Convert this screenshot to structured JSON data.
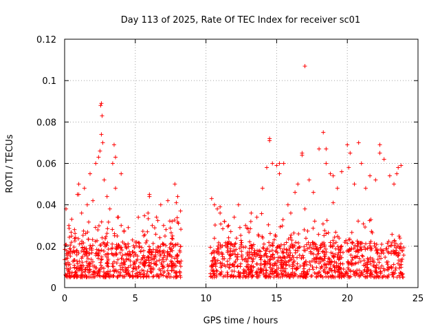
{
  "chart_data": {
    "type": "scatter",
    "title": "Day 113 of 2025, Rate Of TEC Index for receiver sc01",
    "xlabel": "GPS time / hours",
    "ylabel": "ROTI / TECUs",
    "xlim": [
      0,
      25
    ],
    "ylim": [
      0,
      0.12
    ],
    "x_ticks": [
      0,
      5,
      10,
      15,
      20,
      25
    ],
    "x_tick_labels": [
      "0",
      "5",
      "10",
      "15",
      "20",
      "25"
    ],
    "y_ticks": [
      0,
      0.02,
      0.04,
      0.06,
      0.08,
      0.1,
      0.12
    ],
    "y_tick_labels": [
      "0",
      "0.02",
      "0.04",
      "0.06",
      "0.08",
      "0.1",
      "0.12"
    ],
    "grid": true,
    "marker": "+",
    "marker_color": "#ff0000",
    "gap_hours": [
      8.3,
      10.3
    ],
    "series": [
      {
        "x": [
          0.1,
          0.3,
          0.5,
          0.7,
          0.9,
          1.0,
          1.2,
          1.4,
          1.6,
          1.8,
          2.0,
          2.2,
          2.4,
          2.5,
          2.6,
          2.7,
          2.8,
          3.0,
          3.2,
          3.4,
          3.5,
          3.6,
          3.8,
          4.0,
          4.2,
          4.5,
          4.8,
          5.0,
          5.3,
          5.6,
          5.9,
          6.0,
          6.2,
          6.5,
          6.8,
          7.0,
          7.3,
          7.6,
          7.8,
          8.0,
          8.2,
          10.4,
          10.6,
          10.8,
          11.0,
          11.3,
          11.6,
          12.0,
          12.4,
          12.8,
          13.2,
          13.6,
          14.0,
          14.3,
          14.5,
          14.7,
          15.0,
          15.2,
          15.5,
          15.8,
          16.0,
          16.3,
          16.5,
          16.8,
          17.0,
          17.3,
          17.6,
          18.0,
          18.3,
          18.5,
          18.8,
          19.0,
          19.3,
          19.6,
          20.0,
          20.2,
          20.5,
          20.8,
          21.0,
          21.3,
          21.6,
          22.0,
          22.3,
          22.6,
          23.0,
          23.3,
          23.6,
          23.8,
          2.55,
          2.6,
          2.65,
          3.6,
          14.5,
          15.2,
          16.8,
          17.0,
          18.5,
          20.1,
          22.3,
          23.5,
          1.0,
          4.0,
          6.0,
          7.9,
          11.0,
          12.3,
          19.0
        ],
        "y": [
          0.038,
          0.03,
          0.033,
          0.028,
          0.045,
          0.05,
          0.036,
          0.048,
          0.04,
          0.055,
          0.042,
          0.06,
          0.063,
          0.066,
          0.074,
          0.07,
          0.052,
          0.044,
          0.038,
          0.06,
          0.069,
          0.048,
          0.034,
          0.03,
          0.027,
          0.029,
          0.023,
          0.022,
          0.02,
          0.025,
          0.036,
          0.044,
          0.03,
          0.034,
          0.04,
          0.03,
          0.042,
          0.032,
          0.05,
          0.044,
          0.037,
          0.043,
          0.04,
          0.038,
          0.036,
          0.032,
          0.03,
          0.034,
          0.029,
          0.03,
          0.036,
          0.034,
          0.048,
          0.058,
          0.071,
          0.06,
          0.059,
          0.055,
          0.06,
          0.04,
          0.036,
          0.046,
          0.05,
          0.064,
          0.038,
          0.052,
          0.046,
          0.067,
          0.075,
          0.06,
          0.055,
          0.054,
          0.048,
          0.056,
          0.069,
          0.065,
          0.05,
          0.07,
          0.06,
          0.048,
          0.054,
          0.052,
          0.069,
          0.062,
          0.054,
          0.05,
          0.058,
          0.059,
          0.088,
          0.089,
          0.083,
          0.063,
          0.072,
          0.06,
          0.065,
          0.107,
          0.067,
          0.058,
          0.065,
          0.055,
          0.045,
          0.055,
          0.045,
          0.041,
          0.039,
          0.04,
          0.041
        ]
      }
    ],
    "noise_band_y": [
      0.005,
      0.022
    ]
  }
}
